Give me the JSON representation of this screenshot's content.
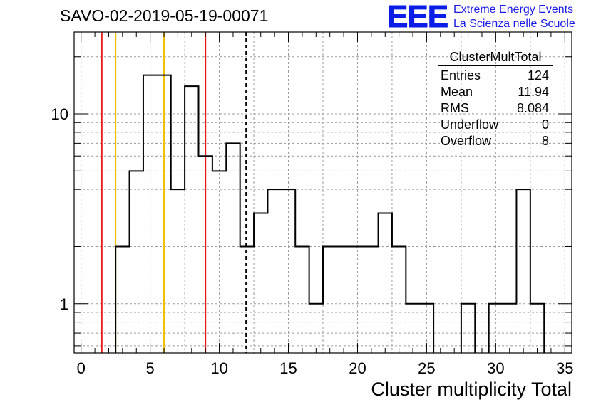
{
  "header": {
    "title": "SAVO-02-2019-05-19-00071",
    "logo_letters": "EEE",
    "logo_line1": "Extreme Energy Events",
    "logo_line2": "La Scienza nelle Scuole"
  },
  "stats": {
    "name": "ClusterMultTotal",
    "rows": [
      {
        "label": "Entries",
        "value": "124"
      },
      {
        "label": "Mean",
        "value": "11.94"
      },
      {
        "label": "RMS",
        "value": "8.084"
      },
      {
        "label": "Underflow",
        "value": "0"
      },
      {
        "label": "Overflow",
        "value": "8"
      }
    ]
  },
  "chart_data": {
    "type": "histogram",
    "title": "SAVO-02-2019-05-19-00071",
    "xlabel": "Cluster multiplicity Total",
    "ylabel": "",
    "xlim": [
      -0.5,
      35.5
    ],
    "ylim": [
      0.55,
      27
    ],
    "yscale": "log",
    "grid": true,
    "bin_edges_start": -0.5,
    "bin_width": 1,
    "counts": [
      0,
      0,
      0,
      2,
      5,
      16,
      16,
      4,
      14,
      6,
      5,
      7,
      2,
      3,
      4,
      4,
      2,
      1,
      2,
      2,
      2,
      2,
      3,
      2,
      1,
      1,
      0,
      0,
      1,
      0,
      1,
      1,
      4,
      1,
      0,
      0
    ],
    "x_ticks": [
      0,
      5,
      10,
      15,
      20,
      25,
      30,
      35
    ],
    "y_ticks": [
      1,
      10
    ],
    "vertical_lines": [
      {
        "x": 1.5,
        "color": "#e8191b",
        "style": "solid"
      },
      {
        "x": 2.5,
        "color": "#f0c000",
        "style": "solid"
      },
      {
        "x": 6.0,
        "color": "#f0c000",
        "style": "solid"
      },
      {
        "x": 9.0,
        "color": "#e8191b",
        "style": "solid"
      },
      {
        "x": 11.94,
        "color": "#000000",
        "style": "dashed"
      }
    ]
  }
}
